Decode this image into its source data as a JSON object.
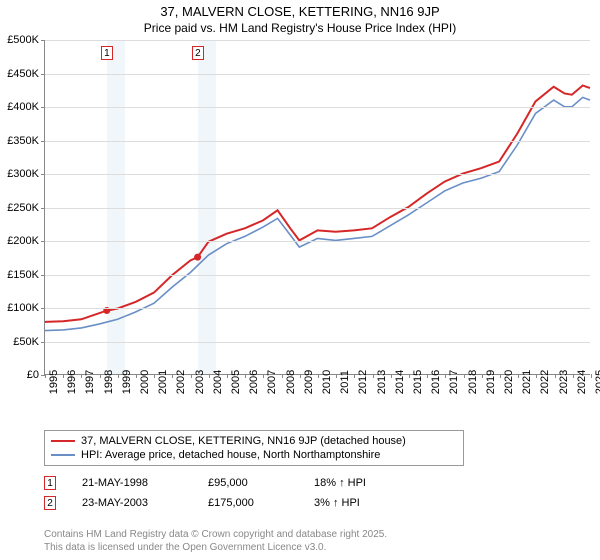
{
  "title": {
    "main": "37, MALVERN CLOSE, KETTERING, NN16 9JP",
    "sub": "Price paid vs. HM Land Registry's House Price Index (HPI)",
    "fontsize_main": 13,
    "fontsize_sub": 12
  },
  "chart": {
    "type": "line",
    "background_color": "#ffffff",
    "grid_color": "#dddddd",
    "axis_color": "#888888",
    "ylim": [
      0,
      500000
    ],
    "ytick_step": 50000,
    "y_labels": [
      "£0",
      "£50K",
      "£100K",
      "£150K",
      "£200K",
      "£250K",
      "£300K",
      "£350K",
      "£400K",
      "£450K",
      "£500K"
    ],
    "x_years": [
      1995,
      1996,
      1997,
      1998,
      1999,
      2000,
      2001,
      2002,
      2003,
      2004,
      2005,
      2006,
      2007,
      2008,
      2009,
      2010,
      2011,
      2012,
      2013,
      2014,
      2015,
      2016,
      2017,
      2018,
      2019,
      2020,
      2021,
      2022,
      2023,
      2024,
      2025
    ],
    "bands": [
      {
        "from_year": 1998.4,
        "to_year": 1999.4,
        "color": "#d6e4f0"
      },
      {
        "from_year": 2003.4,
        "to_year": 2004.4,
        "color": "#d6e4f0"
      }
    ],
    "series": [
      {
        "name": "37, MALVERN CLOSE, KETTERING, NN16 9JP (detached house)",
        "color": "#d62728",
        "width": 2,
        "points": [
          [
            1995,
            78000
          ],
          [
            1996,
            79000
          ],
          [
            1997,
            82000
          ],
          [
            1998.4,
            95000
          ],
          [
            1999,
            98000
          ],
          [
            2000,
            108000
          ],
          [
            2001,
            122000
          ],
          [
            2002,
            148000
          ],
          [
            2003,
            170000
          ],
          [
            2003.4,
            175000
          ],
          [
            2004,
            198000
          ],
          [
            2005,
            210000
          ],
          [
            2006,
            218000
          ],
          [
            2007,
            230000
          ],
          [
            2007.8,
            245000
          ],
          [
            2008.5,
            218000
          ],
          [
            2009,
            200000
          ],
          [
            2010,
            215000
          ],
          [
            2011,
            213000
          ],
          [
            2012,
            215000
          ],
          [
            2013,
            218000
          ],
          [
            2014,
            235000
          ],
          [
            2015,
            250000
          ],
          [
            2016,
            270000
          ],
          [
            2017,
            288000
          ],
          [
            2018,
            300000
          ],
          [
            2019,
            308000
          ],
          [
            2020,
            318000
          ],
          [
            2021,
            360000
          ],
          [
            2022,
            408000
          ],
          [
            2023,
            430000
          ],
          [
            2023.6,
            420000
          ],
          [
            2024,
            418000
          ],
          [
            2024.6,
            432000
          ],
          [
            2025,
            428000
          ]
        ]
      },
      {
        "name": "HPI: Average price, detached house, North Northamptonshire",
        "color": "#6a8fc7",
        "width": 1.6,
        "points": [
          [
            1995,
            65000
          ],
          [
            1996,
            66000
          ],
          [
            1997,
            69000
          ],
          [
            1998,
            75000
          ],
          [
            1999,
            82000
          ],
          [
            2000,
            93000
          ],
          [
            2001,
            106000
          ],
          [
            2002,
            130000
          ],
          [
            2003,
            152000
          ],
          [
            2004,
            178000
          ],
          [
            2005,
            195000
          ],
          [
            2006,
            206000
          ],
          [
            2007,
            220000
          ],
          [
            2007.8,
            233000
          ],
          [
            2008.5,
            208000
          ],
          [
            2009,
            190000
          ],
          [
            2010,
            203000
          ],
          [
            2011,
            200000
          ],
          [
            2012,
            203000
          ],
          [
            2013,
            206000
          ],
          [
            2014,
            222000
          ],
          [
            2015,
            238000
          ],
          [
            2016,
            256000
          ],
          [
            2017,
            274000
          ],
          [
            2018,
            286000
          ],
          [
            2019,
            293000
          ],
          [
            2020,
            303000
          ],
          [
            2021,
            343000
          ],
          [
            2022,
            390000
          ],
          [
            2023,
            410000
          ],
          [
            2023.6,
            400000
          ],
          [
            2024,
            400000
          ],
          [
            2024.6,
            414000
          ],
          [
            2025,
            410000
          ]
        ]
      }
    ],
    "price_markers": [
      {
        "label": "1",
        "year": 1998.4,
        "value": 95000
      },
      {
        "label": "2",
        "year": 2003.4,
        "value": 175000
      }
    ],
    "marker_labels_top": [
      {
        "label": "1",
        "year": 1998.4
      },
      {
        "label": "2",
        "year": 2003.4
      }
    ]
  },
  "legend": {
    "items": [
      {
        "color": "#d62728",
        "label": "37, MALVERN CLOSE, KETTERING, NN16 9JP (detached house)"
      },
      {
        "color": "#6a8fc7",
        "label": "HPI: Average price, detached house, North Northamptonshire"
      }
    ]
  },
  "events": [
    {
      "label": "1",
      "date": "21-MAY-1998",
      "price": "£95,000",
      "delta": "18% ↑ HPI"
    },
    {
      "label": "2",
      "date": "23-MAY-2003",
      "price": "£175,000",
      "delta": "3% ↑ HPI"
    }
  ],
  "attribution": {
    "line1": "Contains HM Land Registry data © Crown copyright and database right 2025.",
    "line2": "This data is licensed under the Open Government Licence v3.0."
  }
}
